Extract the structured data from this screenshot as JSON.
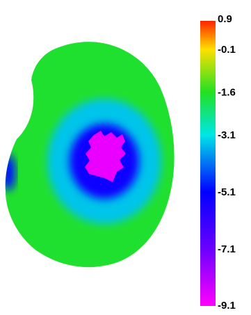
{
  "chart_data": {
    "type": "heatmap",
    "title": "",
    "colorbar": {
      "min": -9.1,
      "max": 0.9,
      "tick_labels": [
        "0.9",
        "-0.1",
        "-1.6",
        "-3.1",
        "-5.1",
        "-7.1",
        "-9.1"
      ],
      "tick_values": [
        0.9,
        -0.1,
        -1.6,
        -3.1,
        -5.1,
        -7.1,
        -9.1
      ],
      "colors": [
        {
          "value": 0.9,
          "color": "#ff2200"
        },
        {
          "value": -0.1,
          "color": "#ffe000"
        },
        {
          "value": -1.6,
          "color": "#22e022"
        },
        {
          "value": -3.1,
          "color": "#00e6e6"
        },
        {
          "value": -5.1,
          "color": "#0000ff"
        },
        {
          "value": -7.1,
          "color": "#6a00ff"
        },
        {
          "value": -9.1,
          "color": "#ff00ff"
        }
      ]
    },
    "map": {
      "description_values": {
        "rim_value": -1.7,
        "mid_ring_value": -3.4,
        "inner_ring_value": -5.3,
        "center_value": -8.8,
        "left_edge_value": -5.0
      }
    }
  }
}
